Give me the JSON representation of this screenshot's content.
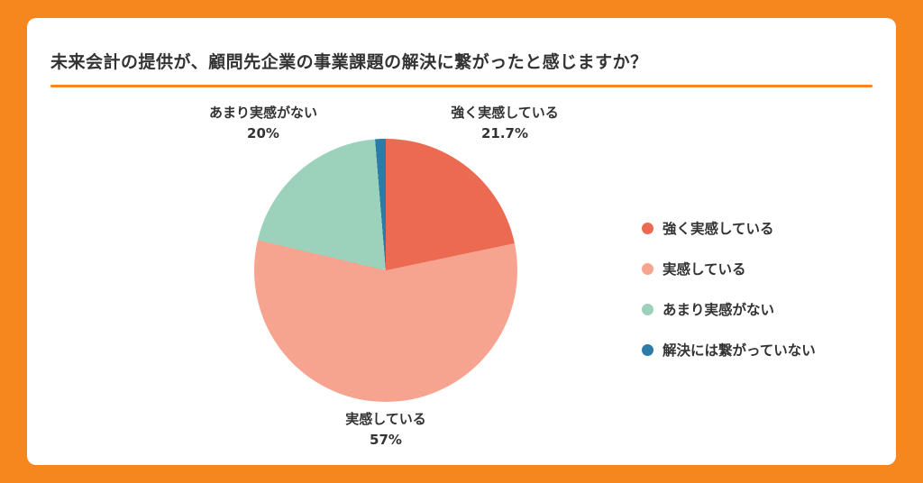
{
  "page": {
    "accent_color": "#F6871F",
    "card_background": "#FFFFFF"
  },
  "header": {
    "title": "未来会計の提供が、顧問先企業の事業課題の解決に繋がったと感じますか？"
  },
  "chart_data": {
    "type": "pie",
    "title": "未来会計の提供が、顧問先企業の事業課題の解決に繋がったと感じますか？",
    "direction": "clockwise",
    "start_angle_deg": 0,
    "legend_position": "right",
    "segments": [
      {
        "label": "強く実感している",
        "value": 21.7,
        "percent_label": "21.7%",
        "color": "#EB6A51"
      },
      {
        "label": "実感している",
        "value": 57,
        "percent_label": "57%",
        "color": "#F6A490"
      },
      {
        "label": "あまり実感がない",
        "value": 20,
        "percent_label": "20%",
        "color": "#9CD2BC"
      },
      {
        "label": "解決には繋がっていない",
        "value": 1.3,
        "percent_label": "",
        "color": "#2B7CA9"
      }
    ]
  }
}
